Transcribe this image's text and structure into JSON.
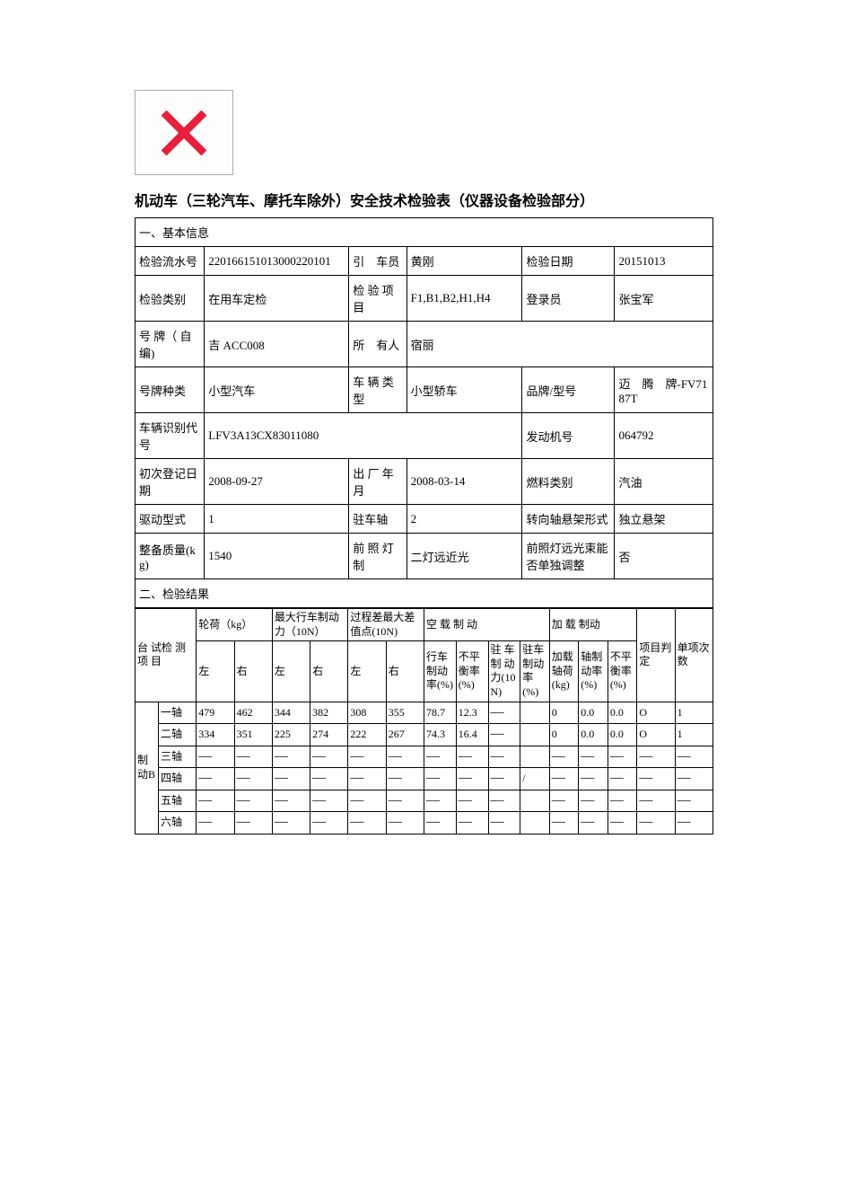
{
  "title": "机动车（三轮汽车、摩托车除外）安全技术检验表（仪器设备检验部分）",
  "section1": "一、基本信息",
  "section2": "二、检验结果",
  "basic": {
    "r1": {
      "l1": "检验流水号",
      "v1": "220166151013000220101",
      "l2": "引　车员",
      "v2": "黄刚",
      "l3": "检验日期",
      "v3": "20151013"
    },
    "r2": {
      "l1": "检验类别",
      "v1": "在用车定检",
      "l2": "检 验 项目",
      "v2": "F1,B1,B2,H1,H4",
      "l3": "登录员",
      "v3": "张宝军"
    },
    "r3": {
      "l1": "号 牌（ 自编)",
      "v1": "吉 ACC008",
      "l2": "所　有人",
      "v2": "宿丽"
    },
    "r4": {
      "l1": "号牌种类",
      "v1": "小型汽车",
      "l2": "车 辆 类型",
      "v2": "小型轿车",
      "l3": "品牌/型号",
      "v3": "迈　腾　牌-FV7187T"
    },
    "r5": {
      "l1": "车辆识别代号",
      "v1": "LFV3A13CX83011080",
      "l3": "发动机号",
      "v3": "064792"
    },
    "r6": {
      "l1": "初次登记日期",
      "v1": "2008-09-27",
      "l2": "出 厂 年月",
      "v2": "2008-03-14",
      "l3": "燃料类别",
      "v3": "汽油"
    },
    "r7": {
      "l1": "驱动型式",
      "v1": "1",
      "l2": "驻车轴",
      "v2": "2",
      "l3": "转向轴悬架形式",
      "v3": "独立悬架"
    },
    "r8": {
      "l1": "整备质量(kg)",
      "v1": "1540",
      "l2": "前 照 灯制",
      "v2": "二灯远近光",
      "l3": "前照灯远光束能否单独调整",
      "v3": "否"
    }
  },
  "results": {
    "rowgroup_label": "台 试检 测项 目",
    "brake_label": "制动B",
    "headers": {
      "wheel_load": "轮荷（kg）",
      "max_brake": "最大行车制动力（10N）",
      "proc_diff": "过程差最大差值点(10N)",
      "empty_brake": "空 载 制 动",
      "loaded_brake": "加 载 制动",
      "item_judge": "项目判定",
      "item_count": "单项次数",
      "left": "左",
      "right": "右",
      "brake_rate": "行车制动率(%)",
      "unbal": "不平衡率(%)",
      "park_force": "驻 车制 动力(10N)",
      "park_rate": "驻车制动率(%)",
      "load_axle": "加载轴荷(kg)",
      "axle_brake_rate": "轴制动率(%)",
      "unbal2": "不平衡率(%)"
    },
    "axles": [
      "一轴",
      "二轴",
      "三轴",
      "四轴",
      "五轴",
      "六轴"
    ],
    "data": [
      {
        "wl_l": "479",
        "wl_r": "462",
        "mb_l": "344",
        "mb_r": "382",
        "pd_l": "308",
        "pd_r": "355",
        "br": "78.7",
        "ub": "12.3",
        "pf": "—",
        "pr": "",
        "la": "0",
        "abr": "0.0",
        "ub2": "0.0",
        "judge": "O",
        "cnt": "1"
      },
      {
        "wl_l": "334",
        "wl_r": "351",
        "mb_l": "225",
        "mb_r": "274",
        "pd_l": "222",
        "pd_r": "267",
        "br": "74.3",
        "ub": "16.4",
        "pf": "—",
        "pr": "",
        "la": "0",
        "abr": "0.0",
        "ub2": "0.0",
        "judge": "O",
        "cnt": "1"
      },
      {
        "wl_l": "—",
        "wl_r": "—",
        "mb_l": "—",
        "mb_r": "—",
        "pd_l": "—",
        "pd_r": "—",
        "br": "—",
        "ub": "—",
        "pf": "—",
        "pr": "",
        "la": "—",
        "abr": "—",
        "ub2": "—",
        "judge": "—",
        "cnt": "—"
      },
      {
        "wl_l": "—",
        "wl_r": "—",
        "mb_l": "—",
        "mb_r": "—",
        "pd_l": "—",
        "pd_r": "—",
        "br": "—",
        "ub": "—",
        "pf": "—",
        "pr": "/",
        "la": "—",
        "abr": "—",
        "ub2": "—",
        "judge": "—",
        "cnt": "—"
      },
      {
        "wl_l": "—",
        "wl_r": "—",
        "mb_l": "—",
        "mb_r": "—",
        "pd_l": "—",
        "pd_r": "—",
        "br": "—",
        "ub": "—",
        "pf": "—",
        "pr": "",
        "la": "—",
        "abr": "—",
        "ub2": "—",
        "judge": "—",
        "cnt": "—"
      },
      {
        "wl_l": "—",
        "wl_r": "—",
        "mb_l": "—",
        "mb_r": "—",
        "pd_l": "—",
        "pd_r": "—",
        "br": "—",
        "ub": "—",
        "pf": "—",
        "pr": "",
        "la": "—",
        "abr": "—",
        "ub2": "—",
        "judge": "—",
        "cnt": "—"
      }
    ]
  },
  "style": {
    "text_color": "#000000",
    "border_color": "#000000",
    "bg_color": "#ffffff",
    "cross_color": "#e81e3a",
    "title_fontsize": 16,
    "cell_fontsize": 13,
    "results_fontsize": 12
  }
}
